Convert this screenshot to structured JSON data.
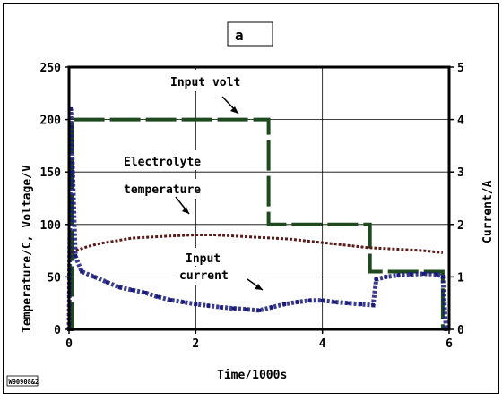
{
  "chart_data": {
    "type": "line",
    "title": "a",
    "xlabel": "Time/1000s",
    "ylabel_left": "Temperature/C, Voltage/V",
    "ylabel_right": "Current/A",
    "xlim": [
      0,
      6
    ],
    "ylim_left": [
      0,
      250
    ],
    "ylim_right": [
      0,
      5
    ],
    "x_ticks": [
      "0",
      "2",
      "4",
      "6"
    ],
    "y_ticks_left": [
      "0",
      "50",
      "100",
      "150",
      "200",
      "250"
    ],
    "y_ticks_right": [
      "0",
      "1",
      "2",
      "3",
      "4",
      "5"
    ],
    "grid": true,
    "colors": {
      "volt": "#1f4a1f",
      "temperature": "#5a1a1a",
      "current": "#1a1a7a",
      "axis": "#000000",
      "grid": "#000000"
    },
    "annotations": {
      "volt": "Input volt",
      "temp_line1": "Electrolyte",
      "temp_line2": "temperature",
      "current_line1": "Input",
      "current_line2": "current"
    },
    "stamp": "W90908&2",
    "series": [
      {
        "key": "volt",
        "axis": "left",
        "x": [
          0.0,
          0.05,
          0.05,
          3.15,
          3.15,
          4.75,
          4.75,
          5.9,
          5.9
        ],
        "y": [
          0,
          0,
          200,
          200,
          100,
          100,
          55,
          55,
          0
        ]
      },
      {
        "key": "temperature",
        "axis": "left",
        "x": [
          0.0,
          0.1,
          0.3,
          0.5,
          0.8,
          1.0,
          1.3,
          1.6,
          2.0,
          2.3,
          2.6,
          2.9,
          3.2,
          3.5,
          3.8,
          4.1,
          4.4,
          4.7,
          5.0,
          5.3,
          5.6,
          5.9
        ],
        "y": [
          70,
          75,
          79,
          82,
          85,
          87,
          88,
          89,
          90,
          90,
          89,
          88,
          87,
          86,
          84,
          82,
          80,
          78,
          77,
          76,
          75,
          73
        ]
      },
      {
        "key": "current",
        "axis": "right",
        "x": [
          0.0,
          0.03,
          0.06,
          0.1,
          0.2,
          0.4,
          0.6,
          0.8,
          1.0,
          1.2,
          1.4,
          1.6,
          1.8,
          2.0,
          2.2,
          2.4,
          2.6,
          2.8,
          3.0,
          3.2,
          3.4,
          3.6,
          3.8,
          4.0,
          4.2,
          4.4,
          4.6,
          4.8,
          4.85,
          5.0,
          5.2,
          5.4,
          5.6,
          5.8,
          5.9,
          5.95
        ],
        "y": [
          0.0,
          4.2,
          3.0,
          1.4,
          1.1,
          1.0,
          0.9,
          0.8,
          0.75,
          0.7,
          0.62,
          0.56,
          0.52,
          0.48,
          0.45,
          0.42,
          0.4,
          0.38,
          0.36,
          0.42,
          0.48,
          0.52,
          0.55,
          0.55,
          0.52,
          0.5,
          0.48,
          0.46,
          0.95,
          1.0,
          1.03,
          1.05,
          1.06,
          1.05,
          1.0,
          0.0
        ]
      }
    ]
  }
}
